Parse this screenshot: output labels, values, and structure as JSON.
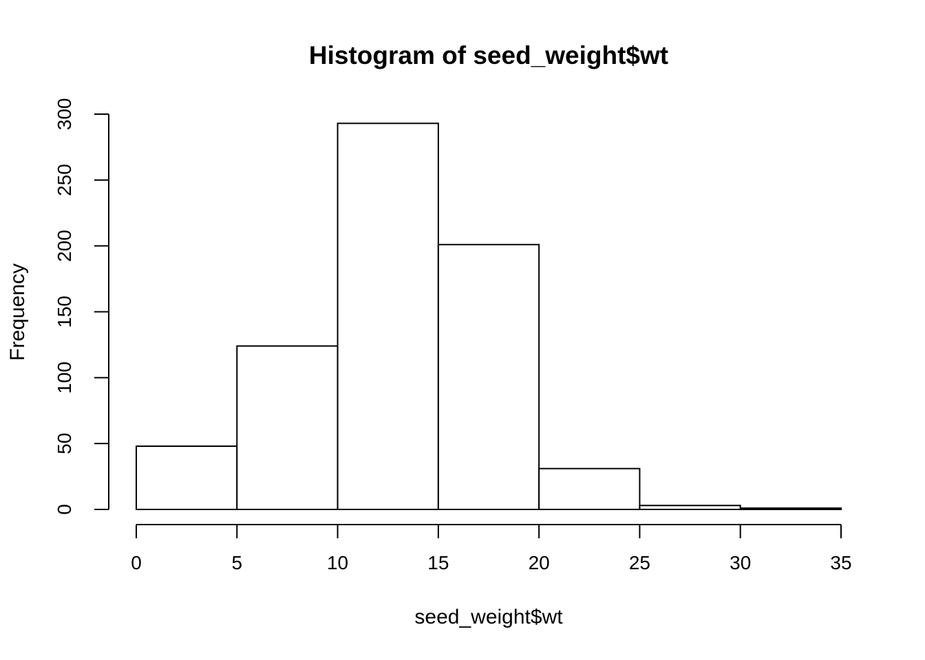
{
  "figure": {
    "background_color": "#ffffff",
    "text_color": "#000000",
    "axis_color": "#000000"
  },
  "chart_data": {
    "type": "bar",
    "subtype": "histogram",
    "title": "Histogram of seed_weight$wt",
    "xlabel": "seed_weight$wt",
    "ylabel": "Frequency",
    "bin_edges": [
      0,
      5,
      10,
      15,
      20,
      25,
      30,
      35
    ],
    "counts": [
      48,
      124,
      293,
      201,
      31,
      3,
      1
    ],
    "categories": [
      "0-5",
      "5-10",
      "10-15",
      "15-20",
      "20-25",
      "25-30",
      "30-35"
    ],
    "x_ticks": [
      0,
      5,
      10,
      15,
      20,
      25,
      30,
      35
    ],
    "y_ticks": [
      0,
      50,
      100,
      150,
      200,
      250,
      300
    ],
    "xlim": [
      0,
      35
    ],
    "ylim": [
      0,
      300
    ],
    "grid": false,
    "legend": null,
    "bar_fill": "#ffffff",
    "bar_stroke": "#000000"
  }
}
